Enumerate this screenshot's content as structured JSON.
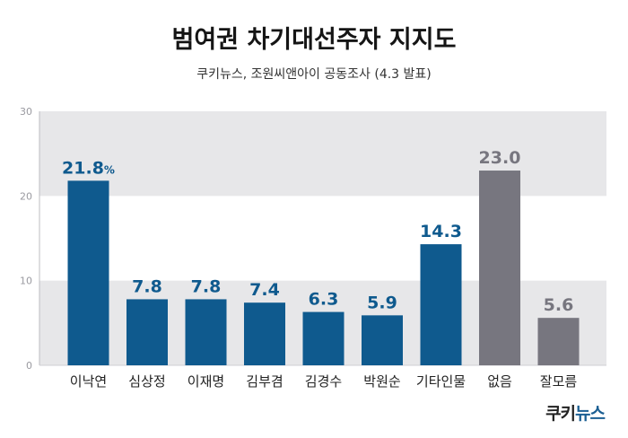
{
  "header": {
    "title": "범여권 차기대선주자 지지도",
    "subtitle": "쿠키뉴스, 조원씨앤아이 공동조사 (4.3 발표)"
  },
  "logo": {
    "part1": "쿠키",
    "part2": "뉴스"
  },
  "colors": {
    "bar_primary": "#0f5a8e",
    "bar_secondary": "#77767f",
    "label_primary": "#0f5a8e",
    "label_secondary": "#77767f",
    "band": "#e7e7e9"
  },
  "chart_data": {
    "type": "bar",
    "title": "범여권 차기대선주자 지지도",
    "subtitle": "쿠키뉴스, 조원씨앤아이 공동조사 (4.3 발표)",
    "categories": [
      "이낙연",
      "심상정",
      "이재명",
      "김부겸",
      "김경수",
      "박원순",
      "기타인물",
      "없음",
      "잘모름"
    ],
    "values": [
      21.8,
      7.8,
      7.8,
      7.4,
      6.3,
      5.9,
      14.3,
      23.0,
      5.6
    ],
    "value_labels": [
      "21.8",
      "7.8",
      "7.8",
      "7.4",
      "6.3",
      "5.9",
      "14.3",
      "23.0",
      "5.6"
    ],
    "first_label_unit": "%",
    "bar_color_group": [
      "primary",
      "primary",
      "primary",
      "primary",
      "primary",
      "primary",
      "primary",
      "secondary",
      "secondary"
    ],
    "yticks": [
      0,
      10,
      20,
      30
    ],
    "ylim": [
      0,
      30
    ],
    "grid": false,
    "xlabel": "",
    "ylabel": ""
  }
}
